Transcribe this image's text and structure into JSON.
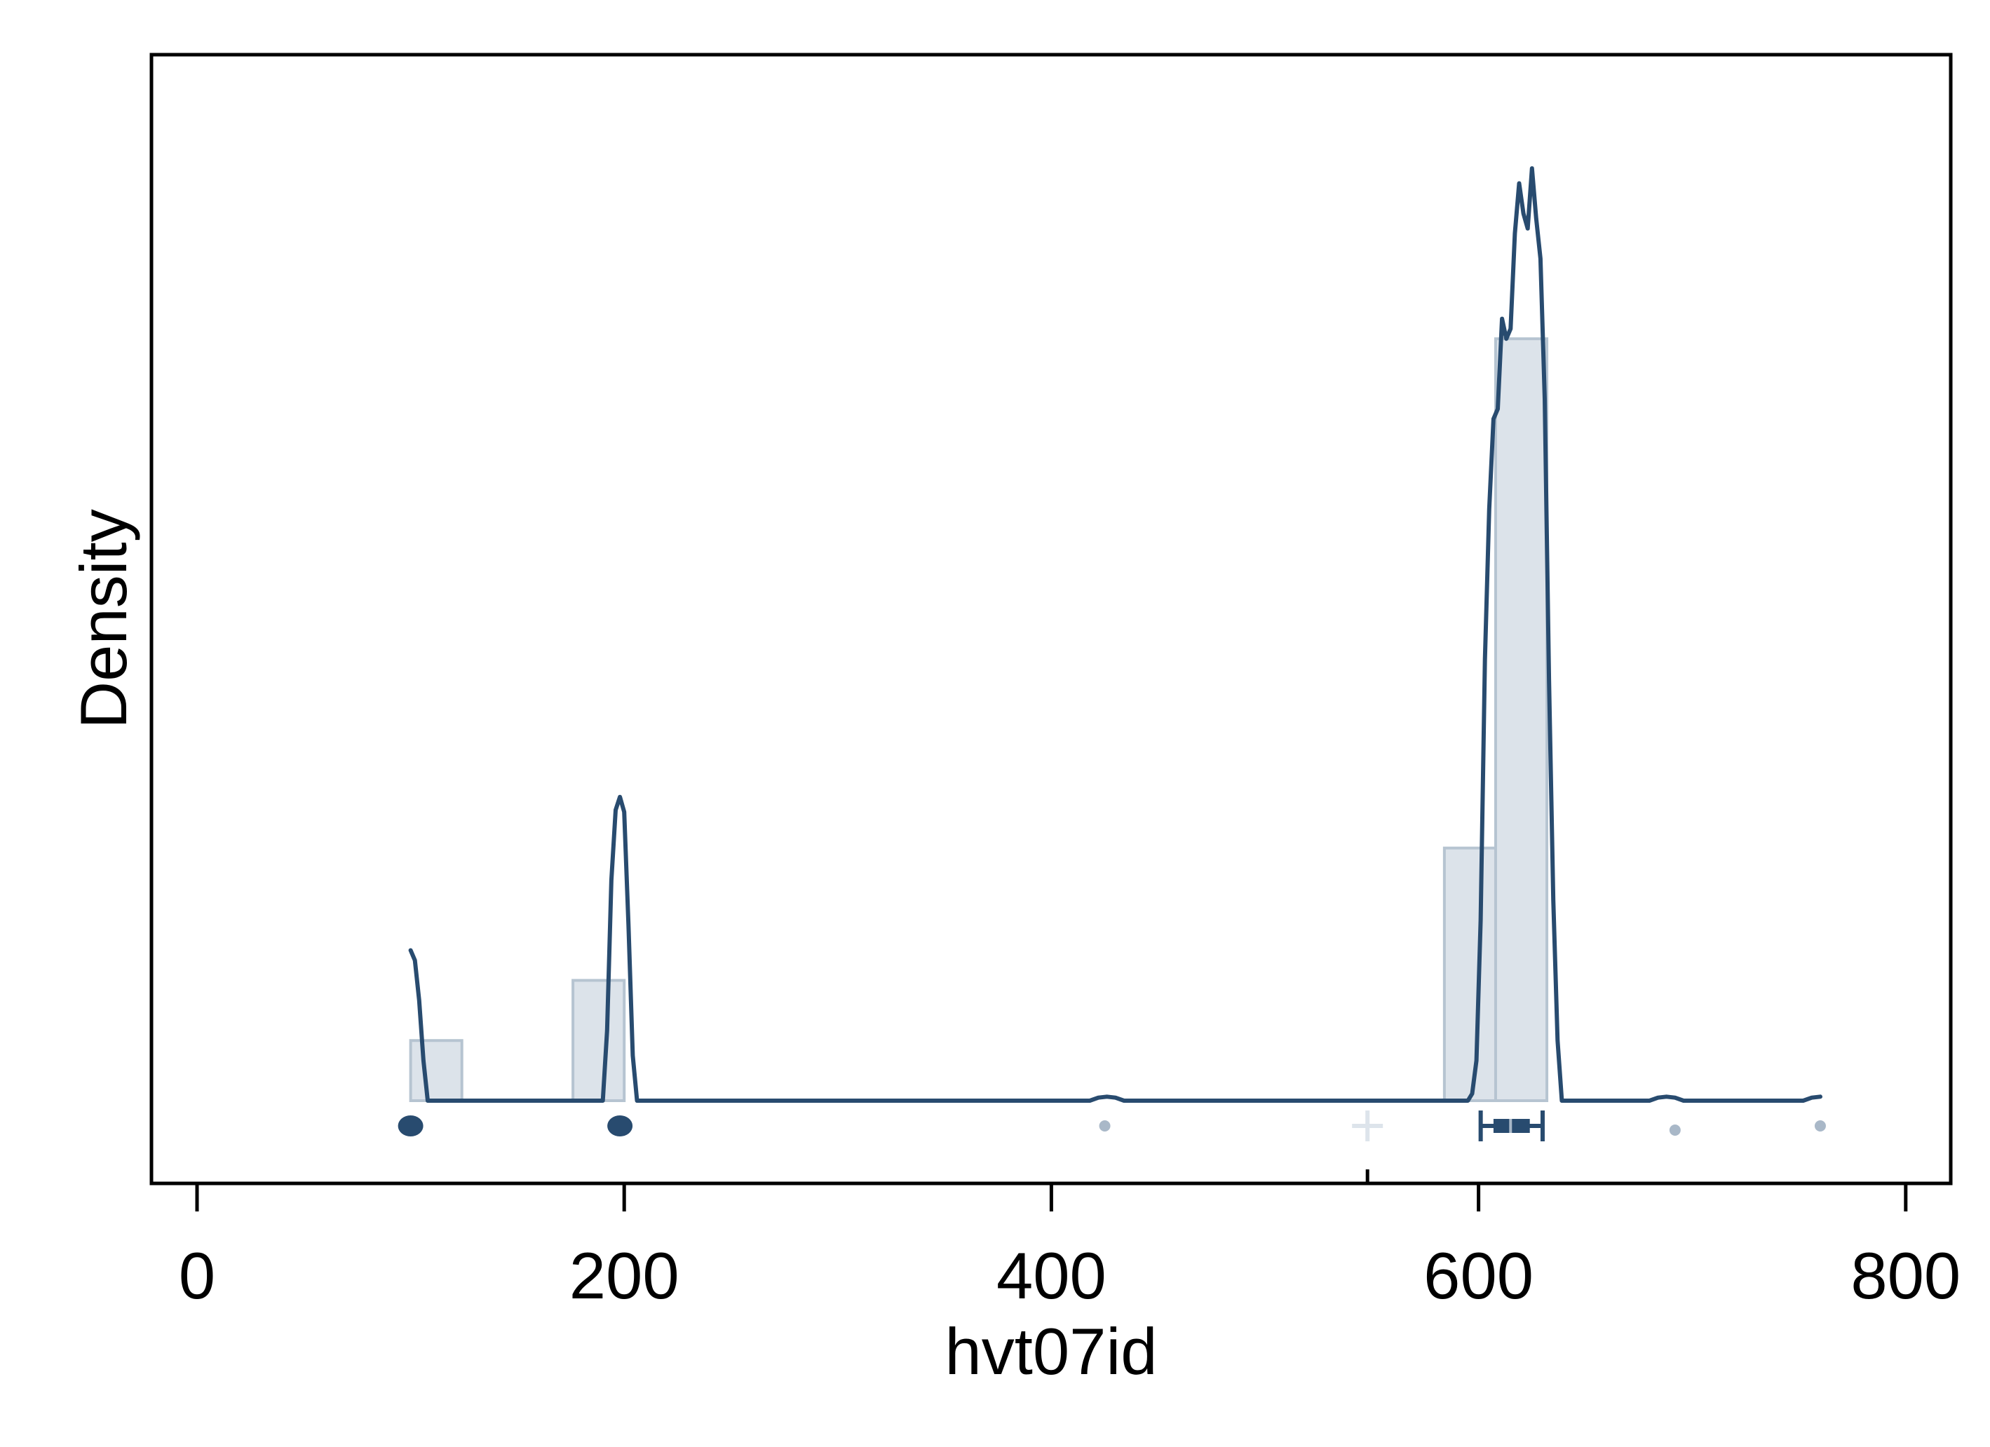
{
  "chart_data": {
    "type": "histogram-density",
    "title": "",
    "xlabel": "hvt07id",
    "ylabel": "Density",
    "xlim": [
      -20,
      820
    ],
    "x_ticks": [
      "0",
      "200",
      "400",
      "600",
      "800"
    ],
    "x_tick_values": [
      0,
      200,
      400,
      600,
      800
    ],
    "y_ticks": [],
    "grid": false,
    "legend": "none",
    "colors": {
      "line": "#284b6f",
      "bar_fill": "#dce3ea",
      "bar_stroke": "#b6c4d1",
      "marker_light": "#a9b8c8",
      "mean_marker": "#dde4eb"
    },
    "histogram": [
      {
        "x0": 100,
        "x1": 124,
        "density": 0.06
      },
      {
        "x0": 176,
        "x1": 200,
        "density": 0.12
      },
      {
        "x0": 584,
        "x1": 608,
        "density": 0.252
      },
      {
        "x0": 608,
        "x1": 632,
        "density": 0.76
      }
    ],
    "density_curve": {
      "x": [
        100,
        102,
        104,
        106,
        108,
        110,
        190,
        192,
        194,
        196,
        198,
        200,
        202,
        204,
        206,
        208,
        210,
        405,
        418,
        422,
        426,
        430,
        434,
        438,
        595,
        597,
        599,
        601,
        603,
        605,
        607,
        609,
        611,
        613,
        615,
        617,
        619,
        621,
        623,
        625,
        627,
        629,
        631,
        633,
        635,
        637,
        639,
        641,
        643,
        675,
        680,
        684,
        688,
        692,
        696,
        700,
        740,
        748,
        752,
        756,
        760
      ],
      "y": [
        0.15,
        0.14,
        0.1,
        0.04,
        0.0,
        0.0,
        0.0,
        0.07,
        0.22,
        0.29,
        0.303,
        0.288,
        0.175,
        0.045,
        0.0,
        0.0,
        0.0,
        0.0,
        0.0,
        0.003,
        0.004,
        0.003,
        0.0,
        0.0,
        0.0,
        0.007,
        0.04,
        0.18,
        0.44,
        0.59,
        0.68,
        0.69,
        0.78,
        0.76,
        0.77,
        0.865,
        0.915,
        0.885,
        0.87,
        0.93,
        0.88,
        0.84,
        0.7,
        0.42,
        0.2,
        0.06,
        0.0,
        0.0,
        0.0,
        0.0,
        0.0,
        0.003,
        0.004,
        0.003,
        0.0,
        0.0,
        0.0,
        0.0,
        0.0,
        0.003,
        0.004
      ]
    },
    "rug_points": [
      {
        "x": 100,
        "kind": "dot"
      },
      {
        "x": 198,
        "kind": "dot"
      },
      {
        "x": 425,
        "kind": "small"
      },
      {
        "x": 692,
        "kind": "small-low"
      },
      {
        "x": 760,
        "kind": "small"
      }
    ],
    "box_summary": {
      "whisker_low": 601,
      "q1": 607,
      "median": 615,
      "q3": 624,
      "whisker_high": 630
    },
    "mean_marker_x": 548,
    "top_tick_x": 548
  }
}
